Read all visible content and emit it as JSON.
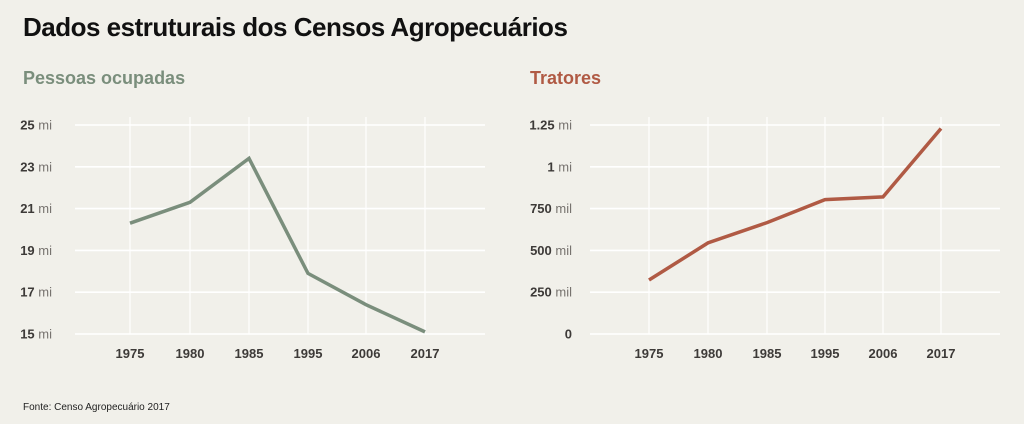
{
  "title": "Dados estruturais dos Censos Agropecuários",
  "source": "Fonte: Censo Agropecuário 2017",
  "chart_data": [
    {
      "type": "line",
      "title": "Pessoas ocupadas",
      "color": "#7a8e7c",
      "categories": [
        "1975",
        "1980",
        "1985",
        "1995",
        "2006",
        "2017"
      ],
      "values": [
        20.3,
        21.3,
        23.4,
        17.9,
        16.4,
        15.1
      ],
      "unit": "millions",
      "ylim": [
        15,
        25
      ],
      "yticks": [
        {
          "value": 25,
          "num": "25",
          "unit": "mi"
        },
        {
          "value": 23,
          "num": "23",
          "unit": "mi"
        },
        {
          "value": 21,
          "num": "21",
          "unit": "mi"
        },
        {
          "value": 19,
          "num": "19",
          "unit": "mi"
        },
        {
          "value": 17,
          "num": "17",
          "unit": "mi"
        },
        {
          "value": 15,
          "num": "15",
          "unit": "mi"
        }
      ],
      "grid": true
    },
    {
      "type": "line",
      "title": "Tratores",
      "color": "#b05a44",
      "categories": [
        "1975",
        "1980",
        "1985",
        "1995",
        "2006",
        "2017"
      ],
      "values": [
        323000,
        545000,
        666000,
        804000,
        820000,
        1229000
      ],
      "unit": "units",
      "ylim": [
        0,
        1250000
      ],
      "yticks": [
        {
          "value": 1250000,
          "num": "1.25",
          "unit": "mi"
        },
        {
          "value": 1000000,
          "num": "1",
          "unit": "mi"
        },
        {
          "value": 750000,
          "num": "750",
          "unit": "mil"
        },
        {
          "value": 500000,
          "num": "500",
          "unit": "mil"
        },
        {
          "value": 250000,
          "num": "250",
          "unit": "mil"
        },
        {
          "value": 0,
          "num": "0",
          "unit": ""
        }
      ],
      "grid": true
    }
  ]
}
